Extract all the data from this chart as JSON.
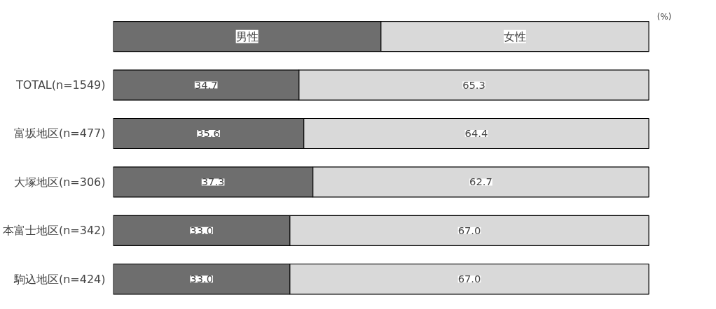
{
  "chart_data": {
    "type": "bar",
    "orientation": "horizontal",
    "stacked": true,
    "legend": "top",
    "grid": false,
    "tick_labels": "y",
    "categories": [
      "TOTAL(n=1549)",
      "富坂地区(n=477)",
      "大塚地区(n=306)",
      "本富士地区(n=342)",
      "駒込地区(n=424)"
    ],
    "series": [
      {
        "name": "男性",
        "color": "#6e6e6e",
        "values": [
          34.7,
          35.6,
          37.3,
          33.0,
          33.0
        ],
        "value_labels": [
          "34.7",
          "35.6",
          "37.3",
          "33.0",
          "33.0"
        ]
      },
      {
        "name": "女性",
        "color": "#d9d9d9",
        "values": [
          65.3,
          64.4,
          62.7,
          67.0,
          67.0
        ],
        "value_labels": [
          "65.3",
          "64.4",
          "62.7",
          "67.0",
          "67.0"
        ]
      }
    ],
    "annotations": [
      "(%)"
    ]
  }
}
